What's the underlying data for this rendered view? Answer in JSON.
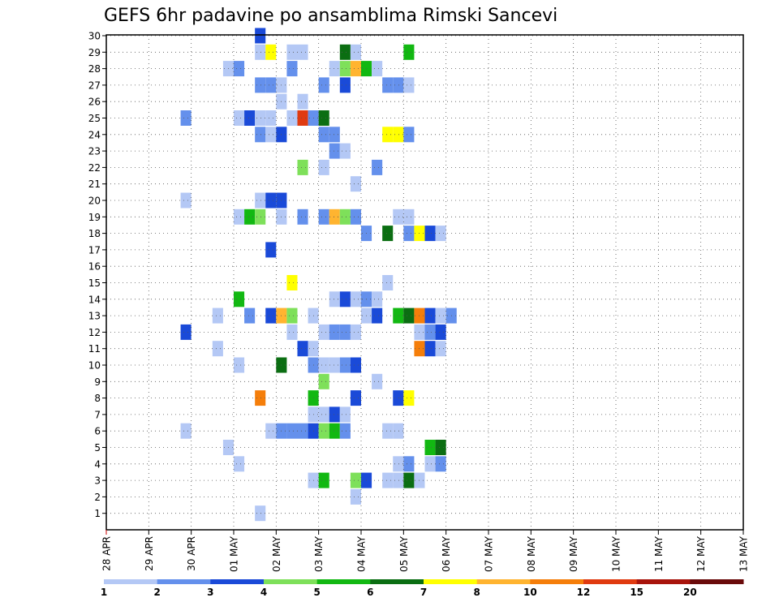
{
  "chart_data": {
    "type": "heatmap",
    "title": "GEFS 6hr padavine po ansamblima Rimski Sancevi",
    "xlabel": "",
    "ylabel": "",
    "x_tick_labels": [
      "28 APR",
      "29 APR",
      "30 APR",
      "01 MAY",
      "02 MAY",
      "03 MAY",
      "04 MAY",
      "05 MAY",
      "06 MAY",
      "07 MAY",
      "08 MAY",
      "09 MAY",
      "10 MAY",
      "11 MAY",
      "12 MAY",
      "13 MAY"
    ],
    "xlim_days": [
      0,
      15
    ],
    "y_tick_labels": [
      "1",
      "2",
      "3",
      "4",
      "5",
      "6",
      "7",
      "8",
      "9",
      "10",
      "11",
      "12",
      "13",
      "14",
      "15",
      "16",
      "17",
      "18",
      "19",
      "20",
      "21",
      "22",
      "23",
      "24",
      "25",
      "26",
      "27",
      "28",
      "29",
      "30"
    ],
    "ylim": [
      0,
      30
    ],
    "grid": true,
    "colorbar": {
      "placement": "bottom",
      "bins": [
        1,
        2,
        3,
        4,
        5,
        6,
        7,
        8,
        10,
        12,
        15,
        20
      ],
      "tick_labels": [
        "1",
        "2",
        "3",
        "4",
        "5",
        "6",
        "7",
        "8",
        "10",
        "12",
        "15",
        "20"
      ],
      "colors": [
        "#b4c8f5",
        "#6490ec",
        "#1a4ad8",
        "#7ee05a",
        "#12b812",
        "#0b6e12",
        "#ffff00",
        "#ffb430",
        "#f57e0a",
        "#e03a10",
        "#a8140c",
        "#6a0a0a"
      ]
    },
    "cells_note": "each cell: [member (y), 6-hour step index from 28 APR 00Z (x), precipitation class 0-11 matching colorbar.bins]",
    "cells": [
      [
        30,
        14,
        2
      ],
      [
        29,
        14,
        0
      ],
      [
        29,
        15,
        6
      ],
      [
        29,
        17,
        0
      ],
      [
        29,
        18,
        0
      ],
      [
        29,
        22,
        5
      ],
      [
        29,
        23,
        0
      ],
      [
        29,
        28,
        4
      ],
      [
        28,
        11,
        0
      ],
      [
        28,
        12,
        1
      ],
      [
        28,
        17,
        1
      ],
      [
        28,
        21,
        0
      ],
      [
        28,
        22,
        3
      ],
      [
        28,
        23,
        7
      ],
      [
        28,
        24,
        4
      ],
      [
        28,
        25,
        0
      ],
      [
        27,
        14,
        1
      ],
      [
        27,
        15,
        1
      ],
      [
        27,
        16,
        0
      ],
      [
        27,
        20,
        1
      ],
      [
        27,
        22,
        2
      ],
      [
        27,
        26,
        1
      ],
      [
        27,
        27,
        1
      ],
      [
        27,
        28,
        0
      ],
      [
        26,
        16,
        0
      ],
      [
        26,
        18,
        0
      ],
      [
        25,
        7,
        1
      ],
      [
        25,
        12,
        0
      ],
      [
        25,
        13,
        2
      ],
      [
        25,
        14,
        0
      ],
      [
        25,
        15,
        0
      ],
      [
        25,
        17,
        0
      ],
      [
        25,
        18,
        9
      ],
      [
        25,
        19,
        1
      ],
      [
        25,
        20,
        5
      ],
      [
        24,
        14,
        1
      ],
      [
        24,
        15,
        0
      ],
      [
        24,
        16,
        2
      ],
      [
        24,
        20,
        1
      ],
      [
        24,
        21,
        1
      ],
      [
        24,
        26,
        6
      ],
      [
        24,
        27,
        6
      ],
      [
        24,
        28,
        1
      ],
      [
        23,
        21,
        1
      ],
      [
        23,
        22,
        0
      ],
      [
        22,
        18,
        3
      ],
      [
        22,
        20,
        0
      ],
      [
        22,
        25,
        1
      ],
      [
        21,
        23,
        0
      ],
      [
        20,
        7,
        0
      ],
      [
        20,
        14,
        0
      ],
      [
        20,
        15,
        2
      ],
      [
        20,
        16,
        2
      ],
      [
        19,
        12,
        0
      ],
      [
        19,
        13,
        4
      ],
      [
        19,
        14,
        3
      ],
      [
        19,
        16,
        0
      ],
      [
        19,
        18,
        1
      ],
      [
        19,
        20,
        1
      ],
      [
        19,
        21,
        7
      ],
      [
        19,
        22,
        3
      ],
      [
        19,
        23,
        1
      ],
      [
        19,
        27,
        0
      ],
      [
        19,
        28,
        0
      ],
      [
        18,
        24,
        1
      ],
      [
        18,
        26,
        5
      ],
      [
        18,
        28,
        1
      ],
      [
        18,
        29,
        6
      ],
      [
        18,
        30,
        2
      ],
      [
        18,
        31,
        0
      ],
      [
        17,
        15,
        2
      ],
      [
        15,
        17,
        6
      ],
      [
        15,
        26,
        0
      ],
      [
        14,
        12,
        4
      ],
      [
        14,
        21,
        0
      ],
      [
        14,
        22,
        2
      ],
      [
        14,
        23,
        0
      ],
      [
        14,
        24,
        1
      ],
      [
        14,
        25,
        0
      ],
      [
        13,
        10,
        0
      ],
      [
        13,
        13,
        1
      ],
      [
        13,
        15,
        2
      ],
      [
        13,
        16,
        7
      ],
      [
        13,
        17,
        3
      ],
      [
        13,
        19,
        0
      ],
      [
        13,
        24,
        0
      ],
      [
        13,
        25,
        2
      ],
      [
        13,
        27,
        4
      ],
      [
        13,
        28,
        5
      ],
      [
        13,
        29,
        8
      ],
      [
        13,
        30,
        2
      ],
      [
        13,
        31,
        0
      ],
      [
        13,
        32,
        1
      ],
      [
        12,
        7,
        2
      ],
      [
        12,
        17,
        0
      ],
      [
        12,
        20,
        0
      ],
      [
        12,
        21,
        1
      ],
      [
        12,
        22,
        1
      ],
      [
        12,
        23,
        0
      ],
      [
        12,
        29,
        0
      ],
      [
        12,
        30,
        1
      ],
      [
        12,
        31,
        2
      ],
      [
        11,
        10,
        0
      ],
      [
        11,
        18,
        2
      ],
      [
        11,
        19,
        0
      ],
      [
        11,
        29,
        8
      ],
      [
        11,
        30,
        2
      ],
      [
        11,
        31,
        0
      ],
      [
        10,
        12,
        0
      ],
      [
        10,
        16,
        5
      ],
      [
        10,
        19,
        1
      ],
      [
        10,
        20,
        0
      ],
      [
        10,
        21,
        0
      ],
      [
        10,
        22,
        1
      ],
      [
        10,
        23,
        2
      ],
      [
        9,
        20,
        3
      ],
      [
        9,
        25,
        0
      ],
      [
        8,
        14,
        8
      ],
      [
        8,
        19,
        4
      ],
      [
        8,
        23,
        2
      ],
      [
        8,
        27,
        2
      ],
      [
        8,
        28,
        6
      ],
      [
        7,
        19,
        0
      ],
      [
        7,
        20,
        0
      ],
      [
        7,
        21,
        2
      ],
      [
        7,
        22,
        0
      ],
      [
        6,
        7,
        0
      ],
      [
        6,
        15,
        0
      ],
      [
        6,
        16,
        1
      ],
      [
        6,
        17,
        1
      ],
      [
        6,
        18,
        1
      ],
      [
        6,
        19,
        2
      ],
      [
        6,
        20,
        3
      ],
      [
        6,
        21,
        4
      ],
      [
        6,
        22,
        1
      ],
      [
        6,
        26,
        0
      ],
      [
        6,
        27,
        0
      ],
      [
        5,
        11,
        0
      ],
      [
        5,
        30,
        4
      ],
      [
        5,
        31,
        5
      ],
      [
        4,
        12,
        0
      ],
      [
        4,
        27,
        0
      ],
      [
        4,
        28,
        1
      ],
      [
        4,
        30,
        0
      ],
      [
        4,
        31,
        1
      ],
      [
        3,
        19,
        0
      ],
      [
        3,
        20,
        4
      ],
      [
        3,
        23,
        3
      ],
      [
        3,
        24,
        2
      ],
      [
        3,
        26,
        0
      ],
      [
        3,
        27,
        0
      ],
      [
        3,
        28,
        5
      ],
      [
        3,
        29,
        0
      ],
      [
        2,
        23,
        0
      ],
      [
        1,
        14,
        0
      ]
    ]
  }
}
